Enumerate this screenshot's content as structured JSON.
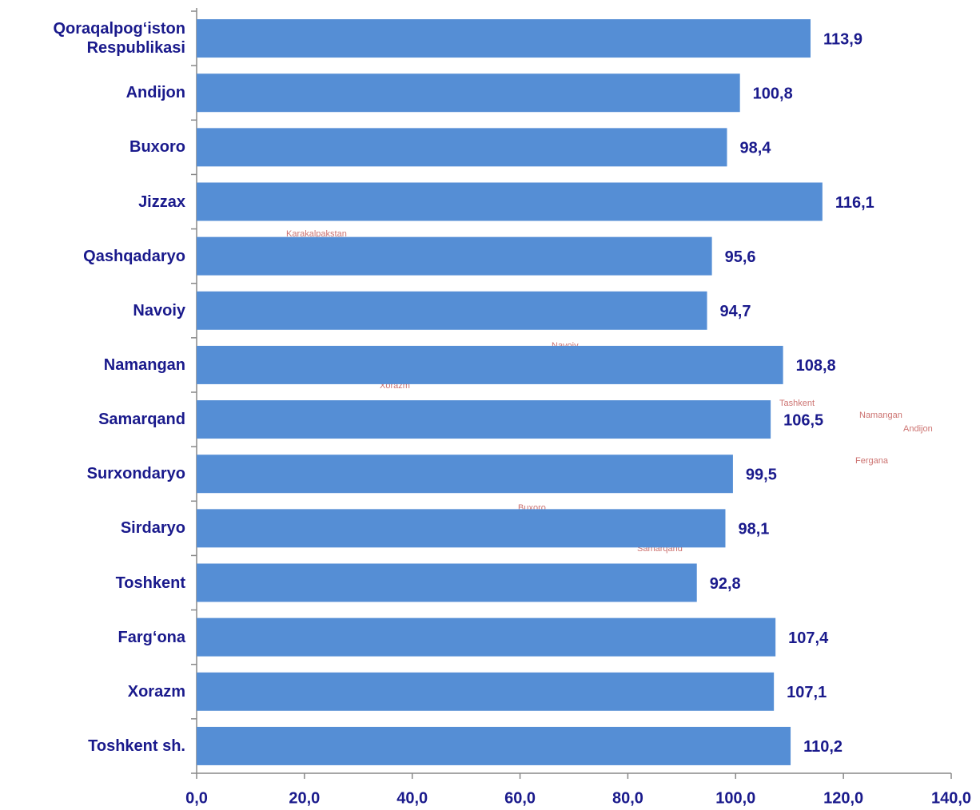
{
  "chart_data": {
    "type": "bar",
    "orientation": "horizontal",
    "categories": [
      "Qoraqalpog‘iston Respublikasi",
      "Andijon",
      "Buxoro",
      "Jizzax",
      "Qashqadaryo",
      "Navoiy",
      "Namangan",
      "Samarqand",
      "Surxondaryo",
      "Sirdaryo",
      "Toshkent",
      "Farg‘ona",
      "Xorazm",
      "Toshkent sh."
    ],
    "values": [
      113.9,
      100.8,
      98.4,
      116.1,
      95.6,
      94.7,
      108.8,
      106.5,
      99.5,
      98.1,
      92.8,
      107.4,
      107.1,
      110.2
    ],
    "value_labels": [
      "113,9",
      "100,8",
      "98,4",
      "116,1",
      "95,6",
      "94,7",
      "108,8",
      "106,5",
      "99,5",
      "98,1",
      "92,8",
      "107,4",
      "107,1",
      "110,2"
    ],
    "color": "#558ed5",
    "xlim": [
      0,
      140
    ],
    "xticks": [
      {
        "value": 0,
        "label": "0,0"
      },
      {
        "value": 20,
        "label": "20,0"
      },
      {
        "value": 40,
        "label": "40,0"
      },
      {
        "value": 60,
        "label": "60,0"
      },
      {
        "value": 80,
        "label": "80,0"
      },
      {
        "value": 100,
        "label": "100,0"
      },
      {
        "value": 120,
        "label": "120,0"
      },
      {
        "value": 140,
        "label": "140,0"
      }
    ],
    "grid": false,
    "annotations": [
      "Karakalpakstan",
      "Navoiy",
      "Xorazm",
      "Tashkent",
      "Namangan",
      "Andijon",
      "Fergana",
      "Buxoro",
      "Samarqand"
    ]
  }
}
